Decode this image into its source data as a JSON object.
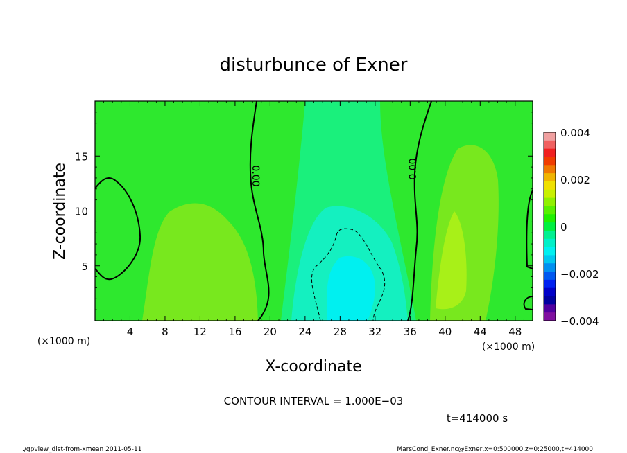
{
  "chart_data": {
    "type": "heatmap",
    "title": "disturbunce of Exner",
    "xlabel": "X-coordinate",
    "ylabel": "Z-coordinate",
    "x_unit": "(×1000 m)",
    "xlim": [
      0,
      50
    ],
    "ylim": [
      0,
      20
    ],
    "x_ticks": [
      "4",
      "8",
      "12",
      "16",
      "20",
      "24",
      "28",
      "32",
      "36",
      "40",
      "44",
      "48"
    ],
    "y_ticks": [
      "5",
      "10",
      "15"
    ],
    "colorbar": {
      "range": [
        -0.004,
        0.004
      ],
      "tick_labels": [
        "0.004",
        "0.002",
        "0",
        "−0.002",
        "−0.004"
      ]
    },
    "contour_labels": [
      "0.00",
      "0.00"
    ],
    "contour_interval_text": "CONTOUR INTERVAL = 1.000E−03",
    "time_text": "t=414000  s"
  },
  "footer": {
    "left": "./gpview_dist-from-xmean   2011-05-11",
    "right": "MarsCond_Exner.nc@Exner,x=0:500000,z=0:25000,t=414000"
  }
}
